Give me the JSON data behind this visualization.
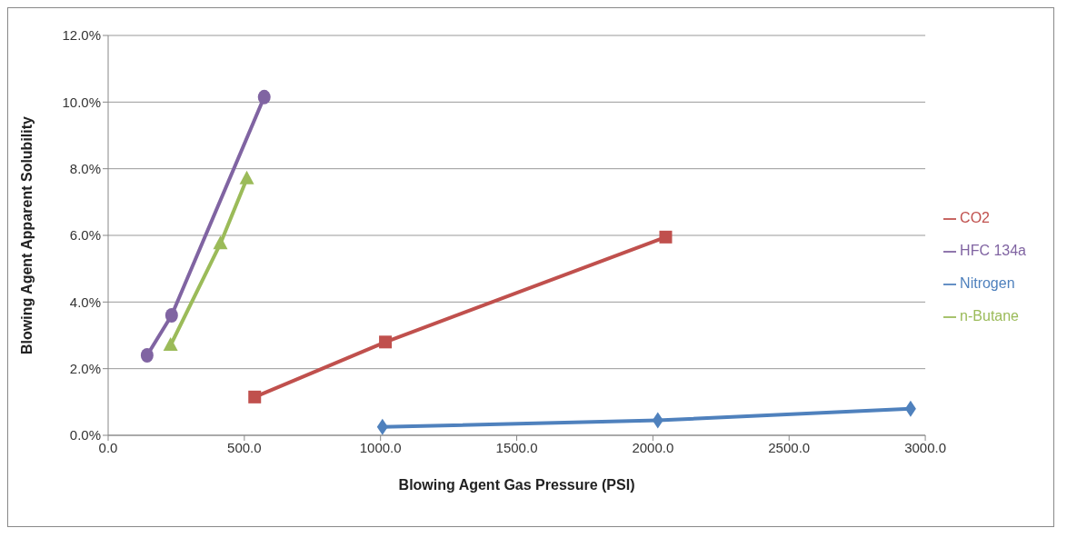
{
  "chart_data": {
    "type": "line",
    "xlabel": "Blowing Agent Gas Pressure (PSI)",
    "ylabel": "Blowing Agent Apparent Solubility",
    "xlim": [
      0,
      3000
    ],
    "xticks": [
      {
        "value": 0,
        "label": "0.0"
      },
      {
        "value": 500,
        "label": "500.0"
      },
      {
        "value": 1000,
        "label": "1000.0"
      },
      {
        "value": 1500,
        "label": "1500.0"
      },
      {
        "value": 2000,
        "label": "2000.0"
      },
      {
        "value": 2500,
        "label": "2500.0"
      },
      {
        "value": 3000,
        "label": "3000.0"
      }
    ],
    "ylim": [
      0,
      12
    ],
    "yticks": [
      {
        "value": 0,
        "label": "0.0%"
      },
      {
        "value": 2,
        "label": "2.0%"
      },
      {
        "value": 4,
        "label": "4.0%"
      },
      {
        "value": 6,
        "label": "6.0%"
      },
      {
        "value": 8,
        "label": "8.0%"
      },
      {
        "value": 10,
        "label": "10.0%"
      },
      {
        "value": 12,
        "label": "12.0%"
      }
    ],
    "grid": "y",
    "legend": "right",
    "series": [
      {
        "name": "HFC 134a",
        "color": "#8064a2",
        "marker": "circle",
        "x": [
          143,
          233,
          573
        ],
        "values": [
          2.4,
          3.6,
          10.15
        ]
      },
      {
        "name": "n-Butane",
        "color": "#9bbb59",
        "marker": "triangle",
        "x": [
          229,
          412,
          509
        ],
        "values": [
          2.7,
          5.75,
          7.7
        ]
      },
      {
        "name": "CO2",
        "color": "#c0504d",
        "marker": "square",
        "x": [
          538,
          1018,
          2047
        ],
        "values": [
          1.15,
          2.8,
          5.95
        ]
      },
      {
        "name": "Nitrogen",
        "color": "#4f81bd",
        "marker": "diamond",
        "x": [
          1007,
          2018,
          2946
        ],
        "values": [
          0.25,
          0.45,
          0.8
        ]
      }
    ]
  }
}
